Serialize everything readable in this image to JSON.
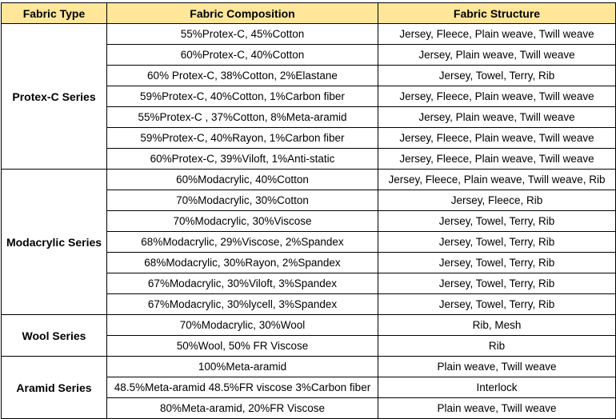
{
  "table": {
    "header_bg": "#FFE699",
    "headers": [
      "Fabric Type",
      "Fabric Composition",
      "Fabric Structure"
    ],
    "groups": [
      {
        "type": "Protex-C Series",
        "rows": [
          [
            "55%Protex-C, 45%Cotton",
            "Jersey, Fleece, Plain weave, Twill weave"
          ],
          [
            "60%Protex-C, 40%Cotton",
            "Jersey, Plain weave, Twill weave"
          ],
          [
            "60% Protex-C, 38%Cotton, 2%Elastane",
            "Jersey, Towel, Terry, Rib"
          ],
          [
            "59%Protex-C, 40%Cotton, 1%Carbon fiber",
            "Jersey, Fleece, Plain weave, Twill weave"
          ],
          [
            "55%Protex-C , 37%Cotton, 8%Meta-aramid",
            "Jersey, Plain weave, Twill weave"
          ],
          [
            "59%Protex-C, 40%Rayon, 1%Carbon fiber",
            "Jersey, Fleece, Plain weave, Twill weave"
          ],
          [
            "60%Protex-C, 39%Viloft, 1%Anti-static",
            "Jersey, Fleece, Plain weave, Twill weave"
          ]
        ]
      },
      {
        "type": "Modacrylic Series",
        "rows": [
          [
            "60%Modacrylic, 40%Cotton",
            "Jersey, Fleece, Plain weave, Twill weave, Rib"
          ],
          [
            "70%Modacrylic, 30%Cotton",
            "Jersey, Fleece, Rib"
          ],
          [
            "70%Modacrylic, 30%Viscose",
            "Jersey, Towel, Terry, Rib"
          ],
          [
            "68%Modacrylic, 29%Viscose, 2%Spandex",
            "Jersey, Towel, Terry, Rib"
          ],
          [
            "68%Modacrylic, 30%Rayon, 2%Spandex",
            "Jersey, Towel, Terry, Rib"
          ],
          [
            "67%Modacrylic, 30%Viloft, 3%Spandex",
            "Jersey, Towel, Terry, Rib"
          ],
          [
            "67%Modacrylic, 30%lycell, 3%Spandex",
            "Jersey, Towel, Terry, Rib"
          ]
        ]
      },
      {
        "type": "Wool Series",
        "rows": [
          [
            "70%Modacrylic, 30%Wool",
            "Rib, Mesh"
          ],
          [
            "50%Wool, 50% FR Viscose",
            "Rib"
          ]
        ]
      },
      {
        "type": "Aramid Series",
        "rows": [
          [
            "100%Meta-aramid",
            "Plain weave, Twill weave"
          ],
          [
            "48.5%Meta-aramid 48.5%FR viscose 3%Carbon fiber",
            "Interlock"
          ],
          [
            "80%Meta-aramid, 20%FR Viscose",
            "Plain weave, Twill weave"
          ]
        ]
      }
    ]
  }
}
